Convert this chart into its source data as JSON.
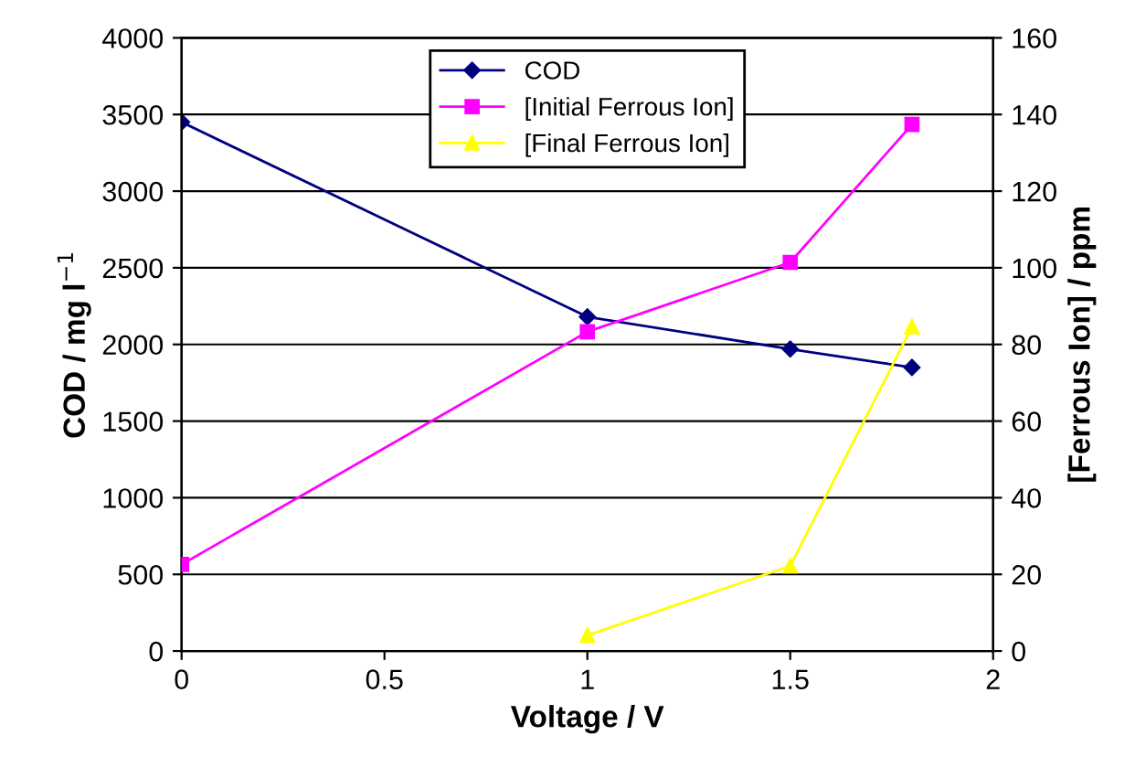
{
  "chart_data": {
    "type": "line",
    "xlabel": "Voltage / V",
    "ylabel": "COD / mg l$^{−1}$",
    "y2label": "[Ferrous Ion] / ppm",
    "xlim": [
      0,
      2
    ],
    "xticks": [
      0,
      0.5,
      1,
      1.5,
      2
    ],
    "ylim": [
      0,
      4000
    ],
    "yticks": [
      0,
      500,
      1000,
      1500,
      2000,
      2500,
      3000,
      3500,
      4000
    ],
    "y2lim": [
      0,
      160
    ],
    "y2ticks": [
      0,
      20,
      40,
      60,
      80,
      100,
      120,
      140,
      160
    ],
    "grid": "y",
    "legend": "top",
    "series": [
      {
        "name": "COD",
        "color": "#000080",
        "marker": "diamond",
        "x": [
          0,
          1,
          1.5,
          1.8
        ],
        "values": [
          3450,
          2180,
          1970,
          1850
        ]
      },
      {
        "name": "[Initial Ferrous Ion]",
        "color": "#ff00ff",
        "marker": "square",
        "axis": "y2",
        "x": [
          0,
          1,
          1.5,
          1.8
        ],
        "values": [
          22.6,
          83.3,
          101.4,
          137.4
        ]
      },
      {
        "name": "[Final Ferrous Ion]",
        "color": "#ffff00",
        "marker": "triangle",
        "axis": "y2",
        "x": [
          1,
          1.5,
          1.8
        ],
        "values": [
          4.1,
          22.2,
          84.6
        ]
      }
    ]
  }
}
